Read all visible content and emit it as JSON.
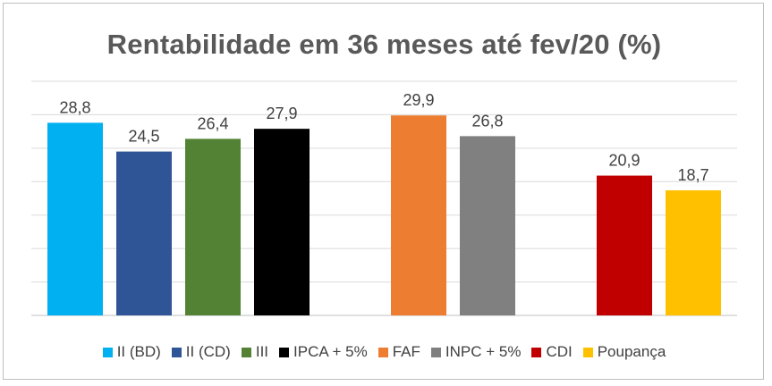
{
  "chart_data": {
    "type": "bar",
    "title": "Rentabilidade em 36 meses até fev/20 (%)",
    "ylim": [
      0,
      35
    ],
    "grid": true,
    "legend_position": "bottom",
    "series": [
      {
        "name": "II (BD)",
        "value": 28.8,
        "label": "28,8",
        "color": "#00B0F0",
        "group": 0
      },
      {
        "name": "II (CD)",
        "value": 24.5,
        "label": "24,5",
        "color": "#2F5597",
        "group": 0
      },
      {
        "name": "III",
        "value": 26.4,
        "label": "26,4",
        "color": "#548235",
        "group": 0
      },
      {
        "name": "IPCA + 5%",
        "value": 27.9,
        "label": "27,9",
        "color": "#000000",
        "group": 0
      },
      {
        "name": "FAF",
        "value": 29.9,
        "label": "29,9",
        "color": "#ED7D31",
        "group": 1
      },
      {
        "name": "INPC + 5%",
        "value": 26.8,
        "label": "26,8",
        "color": "#808080",
        "group": 1
      },
      {
        "name": "CDI",
        "value": 20.9,
        "label": "20,9",
        "color": "#C00000",
        "group": 2
      },
      {
        "name": "Poupança",
        "value": 18.7,
        "label": "18,7",
        "color": "#FFC000",
        "group": 2
      }
    ]
  }
}
